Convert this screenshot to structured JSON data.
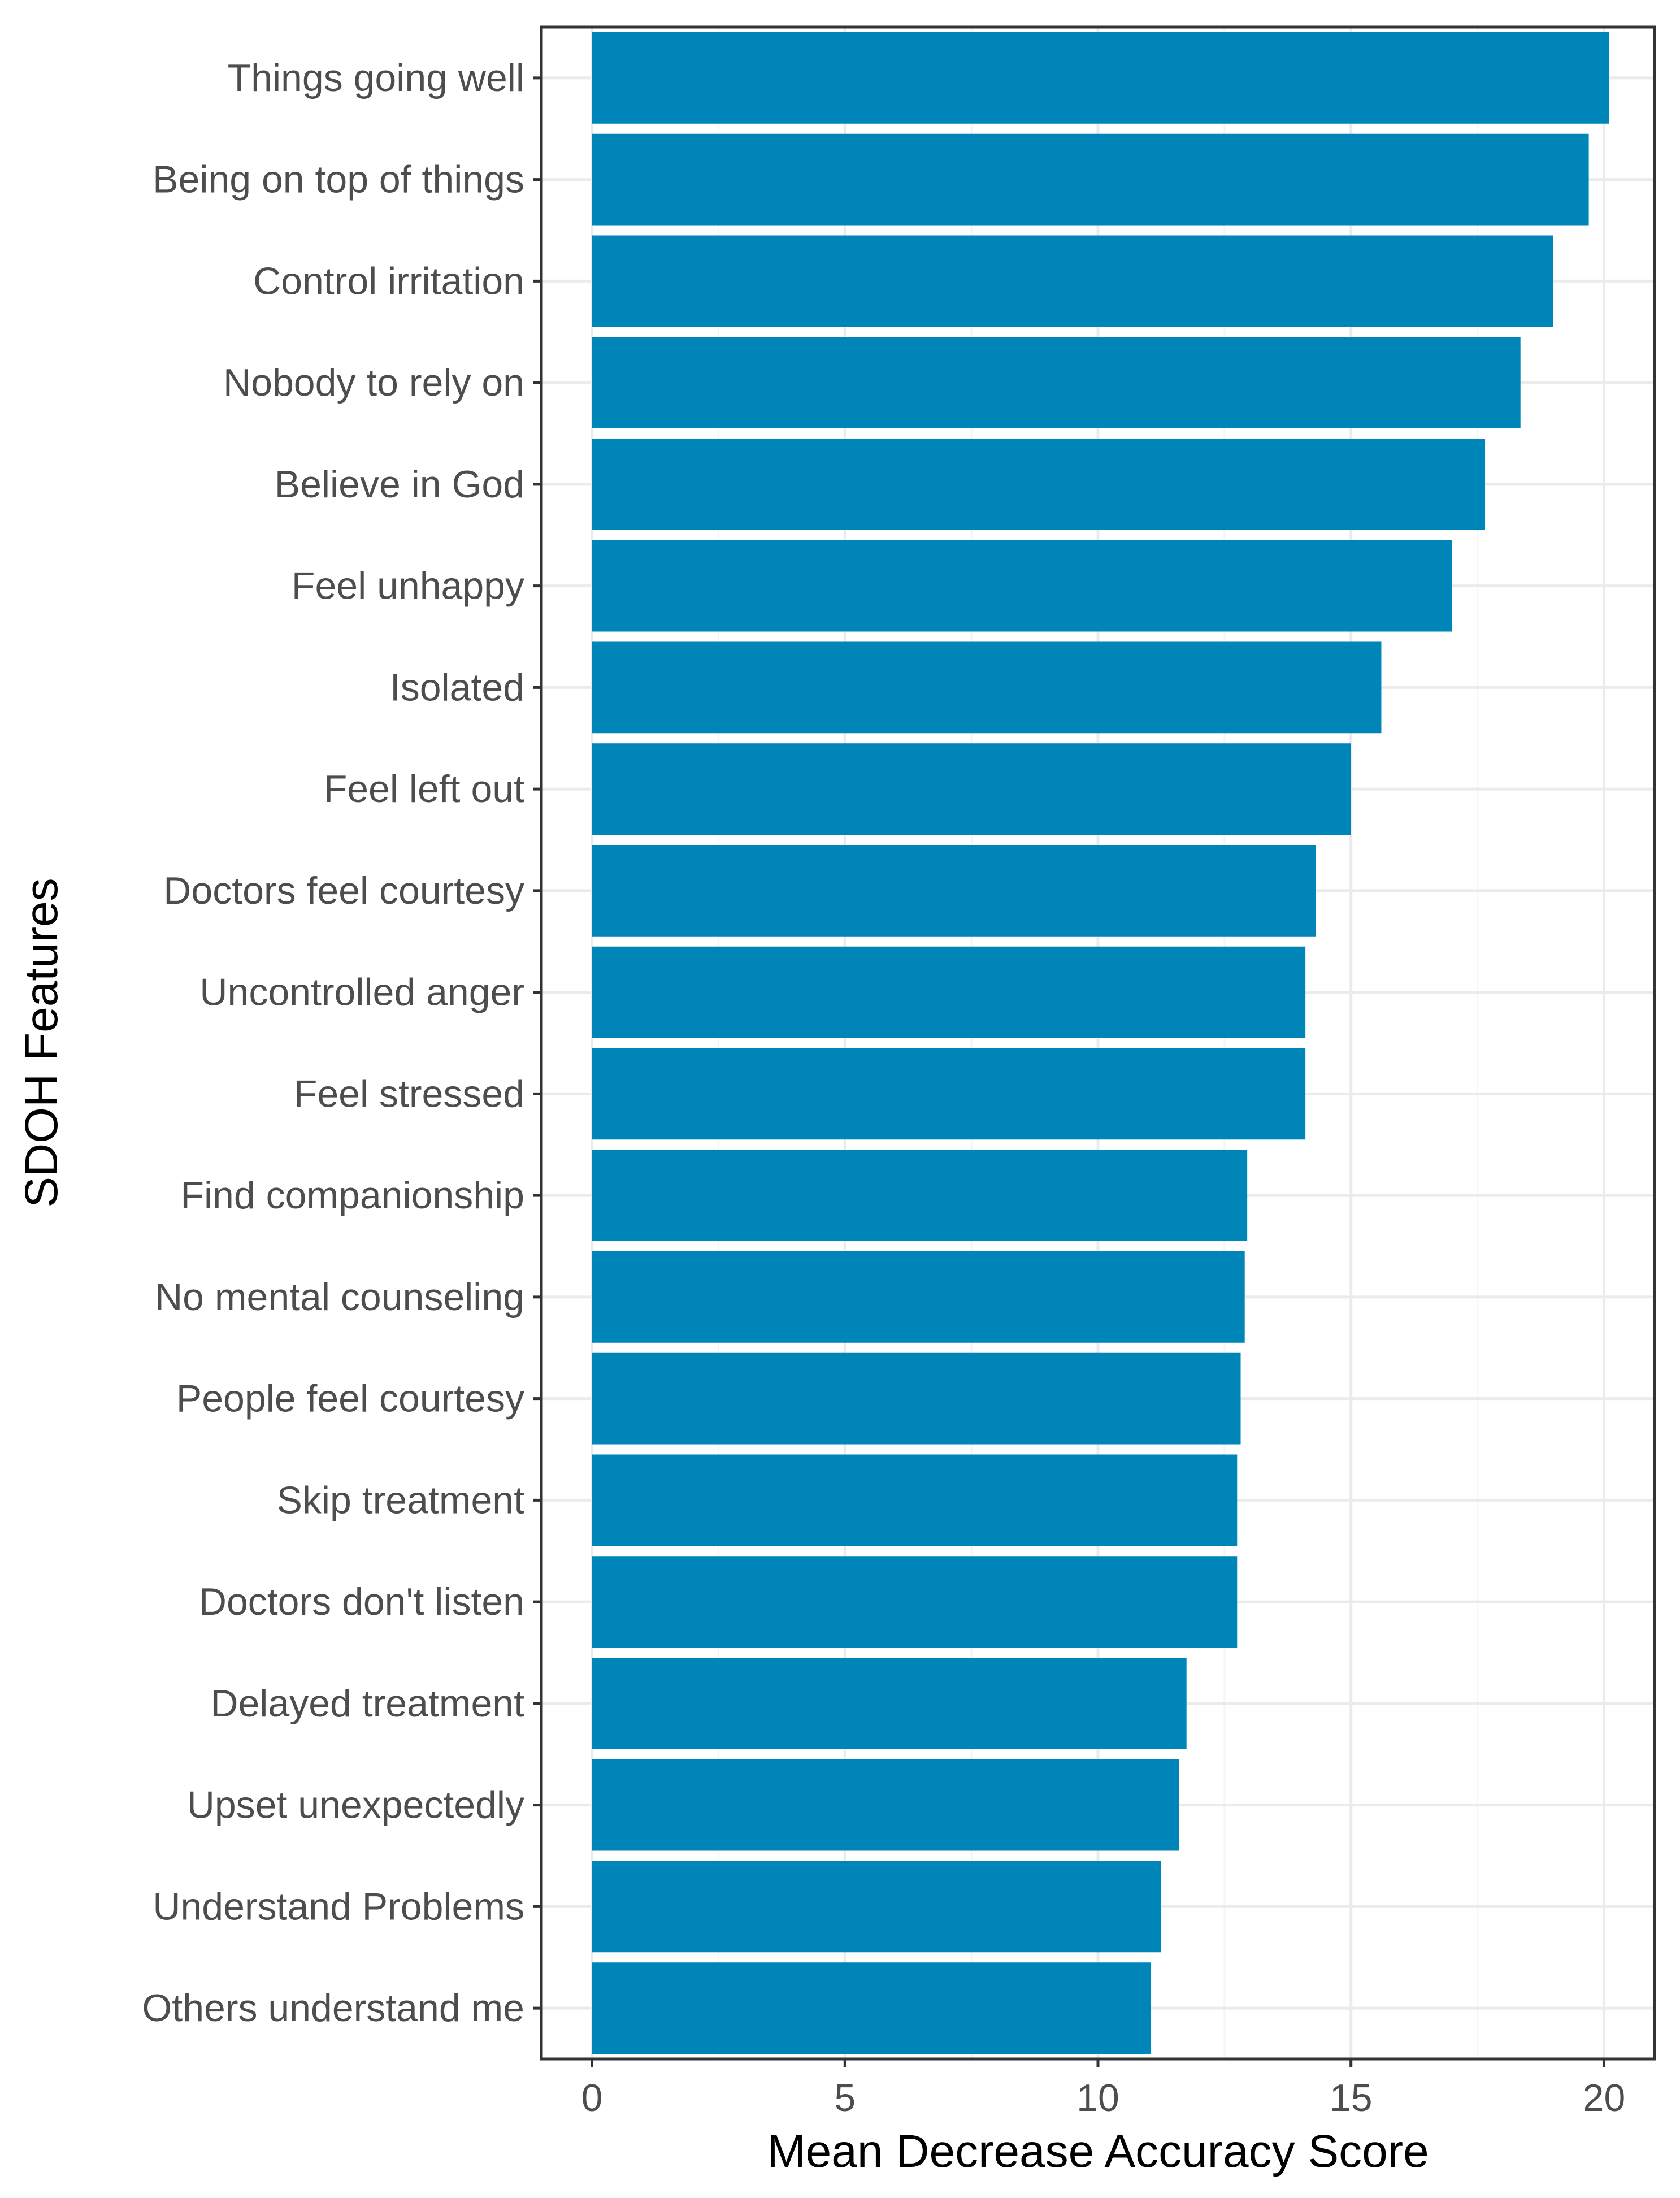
{
  "colors": {
    "bar": "#0085B8",
    "grid_major": "#EBEBEB",
    "grid_minor": "#F5F5F5",
    "panel_border": "#333333",
    "tick_text": "#4D4D4D",
    "background": "#FFFFFF"
  },
  "chart_data": {
    "type": "bar",
    "orientation": "horizontal",
    "title": "",
    "xlabel": "Mean Decrease Accuracy Score",
    "ylabel": "SDOH Features",
    "xlim": [
      -1,
      21
    ],
    "xticks": [
      0,
      5,
      10,
      15,
      20
    ],
    "xtick_labels": [
      "0",
      "5",
      "10",
      "15",
      "20"
    ],
    "grid": true,
    "legend": "none",
    "categories": [
      "Things going well",
      "Being on top of things",
      "Control irritation",
      "Nobody to rely on",
      "Believe in God",
      "Feel unhappy",
      "Isolated",
      "Feel left out",
      "Doctors feel courtesy",
      "Uncontrolled anger",
      "Feel stressed",
      "Find companionship",
      "No mental counseling",
      "People feel courtesy",
      "Skip treatment",
      "Doctors don't listen",
      "Delayed treatment",
      "Upset unexpectedly",
      "Understand Problems",
      "Others understand me"
    ],
    "values": [
      20.1,
      19.7,
      19.0,
      18.35,
      17.65,
      17.0,
      15.6,
      15.0,
      14.3,
      14.1,
      14.1,
      12.95,
      12.9,
      12.82,
      12.75,
      12.75,
      11.75,
      11.6,
      11.25,
      11.05
    ]
  }
}
